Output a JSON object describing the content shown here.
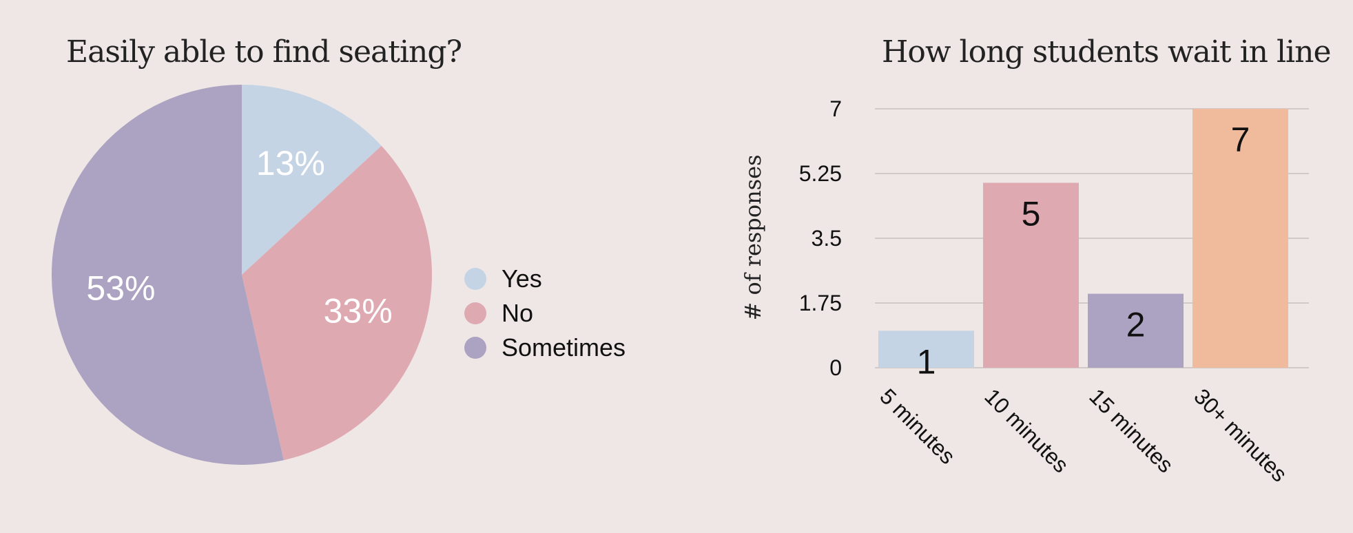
{
  "chart_data": [
    {
      "type": "pie",
      "title": "Easily able to find seating?",
      "slices": [
        {
          "label": "Yes",
          "value": 13,
          "display": "13%",
          "color": "#c4d4e4"
        },
        {
          "label": "No",
          "value": 33,
          "display": "33%",
          "color": "#dfa9b2"
        },
        {
          "label": "Sometimes",
          "value": 53,
          "display": "53%",
          "color": "#aba3c1"
        }
      ],
      "legend_position": "right"
    },
    {
      "type": "bar",
      "title": "How long students wait in line",
      "xlabel": "",
      "ylabel": "# of responses",
      "categories": [
        "5 minutes",
        "10 minutes",
        "15 minutes",
        "30+ minutes"
      ],
      "values": [
        1,
        5,
        2,
        7
      ],
      "colors": [
        "#c4d4e4",
        "#dfa9b2",
        "#aba3c1",
        "#f0bb9c"
      ],
      "ylim": [
        0,
        7
      ],
      "yticks": [
        "0",
        "1.75",
        "3.5",
        "5.25",
        "7"
      ],
      "grid": true
    }
  ]
}
